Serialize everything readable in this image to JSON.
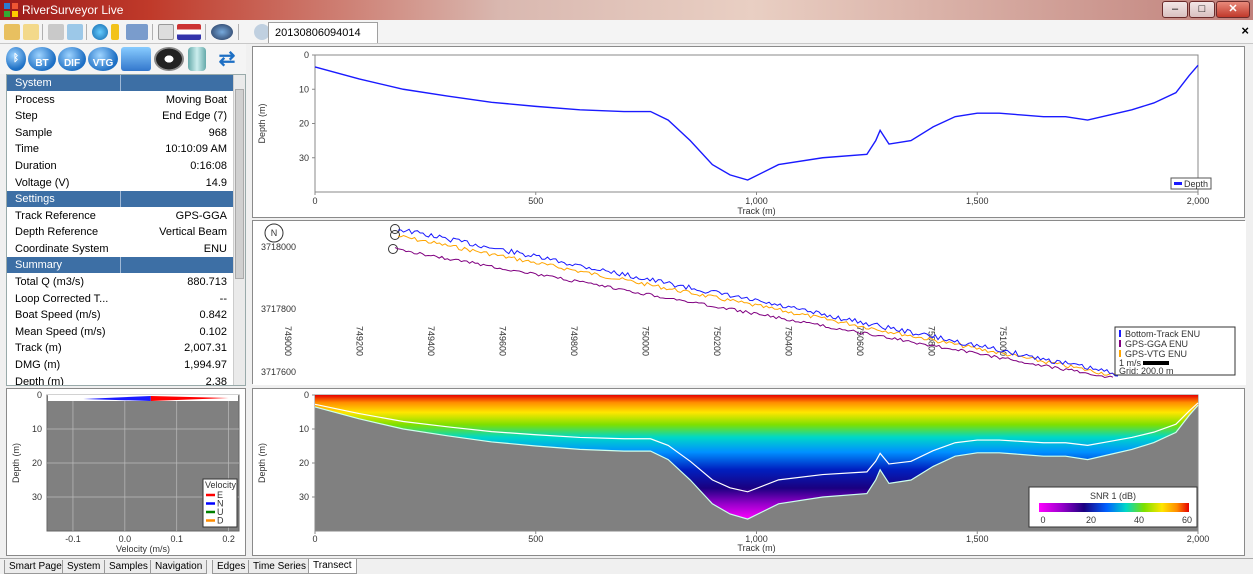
{
  "window": {
    "title": "RiverSurveyor Live",
    "document_tab": "20130806094014"
  },
  "toolbar": {
    "icons": [
      "open-folder-icon",
      "new-folder-icon",
      "tools-icon",
      "table-icon",
      "globe-icon",
      "battery-icon",
      "compass-dropdown-icon",
      "notes-icon",
      "flag-dropdown-icon",
      "help-dropdown-icon"
    ]
  },
  "mode_icons": [
    "bluetooth-icon",
    "bt-icon",
    "dif-icon",
    "vtg-icon",
    "map-icon",
    "reel-icon",
    "cylinder-icon",
    "refresh-icon"
  ],
  "mode_labels": {
    "bt": "BT",
    "dif": "DIF",
    "vtg": "VTG"
  },
  "panel": {
    "sections": [
      {
        "header": "System",
        "rows": [
          {
            "key": "Process",
            "value": "Moving Boat"
          },
          {
            "key": "Step",
            "value": "End Edge (7)"
          },
          {
            "key": "Sample",
            "value": "968"
          },
          {
            "key": "Time",
            "value": "10:10:09 AM"
          },
          {
            "key": "Duration",
            "value": "0:16:08"
          },
          {
            "key": "Voltage (V)",
            "value": "14.9"
          }
        ]
      },
      {
        "header": "Settings",
        "rows": [
          {
            "key": "Track Reference",
            "value": "GPS-GGA"
          },
          {
            "key": "Depth Reference",
            "value": "Vertical Beam"
          },
          {
            "key": "Coordinate System",
            "value": "ENU"
          }
        ]
      },
      {
        "header": "Summary",
        "rows": [
          {
            "key": "Total Q (m3/s)",
            "value": "880.713"
          },
          {
            "key": "Loop Corrected T...",
            "value": "--"
          },
          {
            "key": "Boat Speed (m/s)",
            "value": "0.842"
          },
          {
            "key": "Mean Speed (m/s)",
            "value": "0.102"
          },
          {
            "key": "Track (m)",
            "value": "2,007.31"
          },
          {
            "key": "DMG (m)",
            "value": "1,994.97"
          },
          {
            "key": "Depth (m)",
            "value": "2.38"
          }
        ]
      }
    ]
  },
  "velocity_profile": {
    "ylabel": "Depth (m)",
    "xlabel": "Velocity (m/s)",
    "xticks": [
      "-0.1",
      "0.0",
      "0.1",
      "0.2"
    ],
    "yticks": [
      "0",
      "10",
      "20",
      "30"
    ],
    "legend_title": "Velocity",
    "legend": [
      {
        "name": "E",
        "color": "#ff0000"
      },
      {
        "name": "N",
        "color": "#0000ff"
      },
      {
        "name": "U",
        "color": "#008000"
      },
      {
        "name": "D",
        "color": "#ff8c00"
      }
    ]
  },
  "depth_chart": {
    "ylabel": "Depth (m)",
    "xlabel": "Track (m)",
    "yticks": [
      "0",
      "10",
      "20",
      "30"
    ],
    "xticks": [
      "0",
      "500",
      "1,000",
      "1,500",
      "2,000"
    ],
    "legend": "Depth",
    "color": "#1a1aff",
    "chart_data": {
      "type": "line",
      "x": [
        0,
        100,
        200,
        300,
        400,
        500,
        600,
        700,
        760,
        800,
        850,
        900,
        940,
        980,
        1050,
        1150,
        1250,
        1270,
        1280,
        1300,
        1350,
        1400,
        1450,
        1500,
        1550,
        1600,
        1650,
        1700,
        1750,
        1800,
        1850,
        1900,
        1950,
        1980,
        2000
      ],
      "y": [
        3.5,
        7,
        10,
        12,
        13.8,
        15,
        16,
        16.5,
        16.5,
        19,
        25,
        32,
        35,
        36.5,
        32,
        30,
        29,
        25,
        22,
        26,
        25,
        21,
        18,
        17,
        17,
        17.5,
        18,
        18,
        19,
        17.5,
        16,
        14,
        11,
        6,
        3
      ]
    }
  },
  "track_plot": {
    "ylabels": [
      "3718000",
      "3717800",
      "3717600"
    ],
    "xlabels": [
      "749000",
      "749200",
      "749400",
      "749600",
      "749800",
      "750000",
      "750200",
      "750400",
      "750600",
      "750800",
      "751000"
    ],
    "legend": [
      {
        "name": "Bottom-Track ENU",
        "color": "#1a1aff"
      },
      {
        "name": "GPS-GGA ENU",
        "color": "#800080"
      },
      {
        "name": "GPS-VTG ENU",
        "color": "#ffa500"
      }
    ],
    "scale_label": "1 m/s",
    "grid_label": "Grid: 200.0 m",
    "north_label": "N"
  },
  "contour_chart": {
    "ylabel": "Depth (m)",
    "xlabel": "Track (m)",
    "yticks": [
      "0",
      "10",
      "20",
      "30"
    ],
    "xticks": [
      "0",
      "500",
      "1,000",
      "1,500",
      "2,000"
    ],
    "colorbar_title": "SNR 1 (dB)",
    "colorbar_ticks": [
      "0",
      "20",
      "40",
      "60"
    ]
  },
  "bottom_tabs": [
    "Smart Page",
    "System",
    "Samples",
    "Navigation",
    "Edges",
    "Time Series",
    "Transect"
  ],
  "active_tab": "Transect"
}
